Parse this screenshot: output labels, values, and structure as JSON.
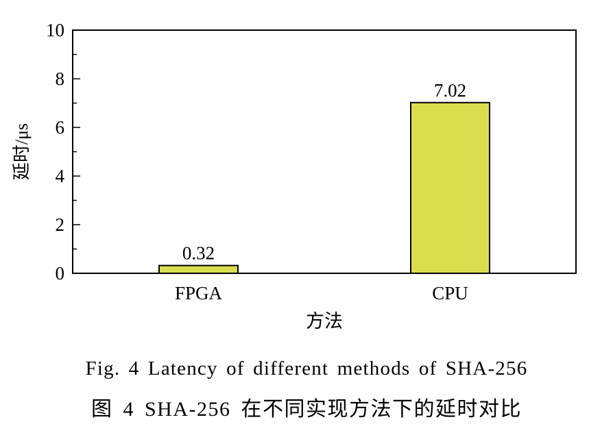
{
  "chart_data": {
    "type": "bar",
    "categories": [
      "FPGA",
      "CPU"
    ],
    "values": [
      0.32,
      7.02
    ],
    "data_labels": [
      "0.32",
      "7.02"
    ],
    "xlabel": "方法",
    "ylabel": "延时/μs",
    "ylim": [
      0,
      10
    ],
    "yticks": [
      "0",
      "2",
      "4",
      "6",
      "8",
      "10"
    ],
    "grid": false,
    "bar_color": "#dade4e",
    "bar_edge_color": "#000000"
  },
  "caption": {
    "en": "Fig. 4   Latency of different methods of SHA-256",
    "zh": "图 4   SHA-256 在不同实现方法下的延时对比"
  }
}
